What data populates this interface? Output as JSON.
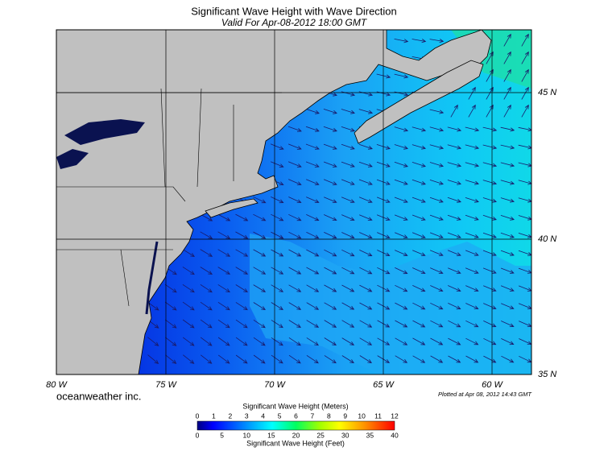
{
  "header": {
    "title": "Significant Wave Height with Wave Direction",
    "subtitle": "Valid For Apr-08-2012 18:00 GMT"
  },
  "map": {
    "longitude_labels": [
      "80 W",
      "75 W",
      "70 W",
      "65 W",
      "60 W"
    ],
    "latitude_labels": [
      "45 N",
      "40 N",
      "35 N"
    ]
  },
  "footer": {
    "brand": "oceanweather inc.",
    "plotted": "Plotted at Apr 08, 2012 14:43 GMT"
  },
  "colorbar": {
    "meters_title": "Significant Wave Height (Meters)",
    "meters_ticks": [
      0,
      1,
      2,
      3,
      4,
      5,
      6,
      7,
      8,
      9,
      10,
      11,
      12
    ],
    "feet_ticks": [
      0,
      5,
      10,
      15,
      20,
      25,
      30,
      35,
      40
    ],
    "feet_title": "Significant Wave Height (Feet)"
  }
}
